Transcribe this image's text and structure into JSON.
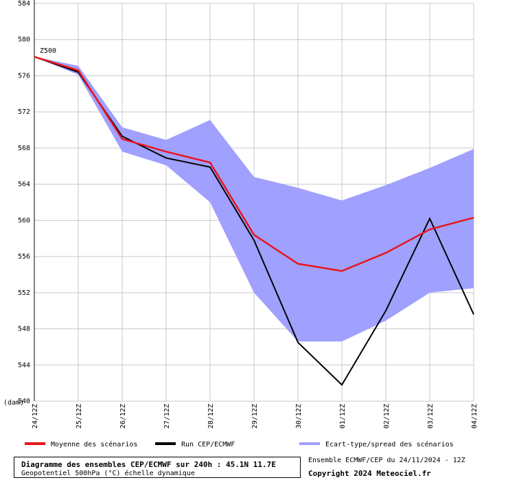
{
  "chart_data": {
    "type": "line",
    "field_label": "Z500",
    "unit_label": "(dam)",
    "ylim": [
      540,
      584
    ],
    "yticks": [
      540,
      544,
      548,
      552,
      556,
      560,
      564,
      568,
      572,
      576,
      580,
      584
    ],
    "ytick_labels": [
      "540",
      "544",
      "548",
      "552",
      "556",
      "560",
      "564",
      "568",
      "572",
      "576",
      "580",
      "584"
    ],
    "categories": [
      "24/12Z",
      "25/12Z",
      "26/12Z",
      "27/12Z",
      "28/12Z",
      "29/12Z",
      "30/12Z",
      "01/12Z",
      "02/12Z",
      "03/12Z",
      "04/12Z"
    ],
    "grid": true,
    "series": [
      {
        "name": "Moyenne des scénarios",
        "color": "#e8141c",
        "values": [
          578.1,
          576.6,
          569.0,
          567.6,
          566.4,
          558.4,
          555.2,
          554.4,
          556.4,
          559.0,
          560.3
        ]
      },
      {
        "name": "Run CEP/ECMWF",
        "color": "#000000",
        "values": [
          578.1,
          576.4,
          569.3,
          566.9,
          565.9,
          557.8,
          546.5,
          541.8,
          550.0,
          560.2,
          549.6
        ]
      },
      {
        "name": "Ecart-type/spread des scénarios",
        "color": "#a0a0ff",
        "type": "band",
        "upper": [
          578.1,
          577.1,
          570.3,
          568.9,
          571.1,
          564.8,
          563.6,
          562.2,
          563.9,
          565.8,
          567.9
        ],
        "lower": [
          578.1,
          576.1,
          567.6,
          566.1,
          562.0,
          552.0,
          546.6,
          546.6,
          548.9,
          552.0,
          552.5
        ]
      }
    ]
  },
  "footer": {
    "title": "Diagramme des ensembles CEP/ECMWF sur 240h : 45.1N 11.7E",
    "subtitle": "Geopotentiel 500hPa (°C) échelle dynamique",
    "run_info": "Ensemble ECMWF/CEP du 24/11/2024 - 12Z",
    "copyright": "Copyright 2024 Meteociel.fr"
  }
}
